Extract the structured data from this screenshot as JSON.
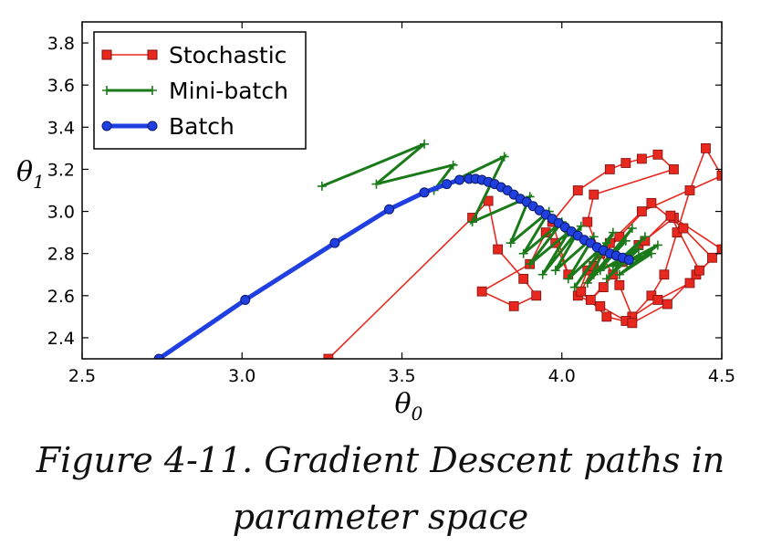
{
  "chart_data": {
    "type": "line",
    "xlabel": "θ",
    "xlabel_sub": "0",
    "ylabel": "θ",
    "ylabel_sub": "1",
    "xlim": [
      2.5,
      4.5
    ],
    "ylim": [
      2.3,
      3.9
    ],
    "xticks": [
      "2.5",
      "3.0",
      "3.5",
      "4.0",
      "4.5"
    ],
    "yticks": [
      "2.4",
      "2.6",
      "2.8",
      "3.0",
      "3.2",
      "3.4",
      "3.6",
      "3.8"
    ],
    "grid": false,
    "legend_position": "top-left",
    "series": [
      {
        "name": "Stochastic",
        "color": "#e8281e",
        "marker": "square",
        "x": [
          3.27,
          3.72,
          3.77,
          3.8,
          3.88,
          3.92,
          3.85,
          3.75,
          3.9,
          3.95,
          3.98,
          4.02,
          3.97,
          4.05,
          4.15,
          4.2,
          4.25,
          4.3,
          4.35,
          4.1,
          4.08,
          4.12,
          4.18,
          4.22,
          4.28,
          4.32,
          4.36,
          4.4,
          4.45,
          4.5,
          4.25,
          4.15,
          4.08,
          4.05,
          4.12,
          4.2,
          4.3,
          4.4,
          4.47,
          4.38,
          4.28,
          4.18,
          4.1,
          4.06,
          4.14,
          4.22,
          4.33,
          4.42,
          4.5,
          4.35,
          4.24,
          4.16,
          4.09,
          4.13,
          4.19,
          4.26,
          4.34,
          4.43
        ],
        "y": [
          2.3,
          2.97,
          3.05,
          2.82,
          2.68,
          2.6,
          2.55,
          2.62,
          2.75,
          2.9,
          2.85,
          2.7,
          2.95,
          3.1,
          3.2,
          3.23,
          3.25,
          3.27,
          3.2,
          3.08,
          2.95,
          2.8,
          2.65,
          2.5,
          2.6,
          2.7,
          2.9,
          3.1,
          3.3,
          3.17,
          3.0,
          2.85,
          2.72,
          2.6,
          2.55,
          2.48,
          2.58,
          2.66,
          2.78,
          2.92,
          3.04,
          2.88,
          2.74,
          2.62,
          2.5,
          2.47,
          2.56,
          2.7,
          2.82,
          2.97,
          2.84,
          2.7,
          2.58,
          2.64,
          2.76,
          2.86,
          2.98,
          2.72
        ]
      },
      {
        "name": "Mini-batch",
        "color": "#1a7a1a",
        "marker": "plus",
        "x": [
          3.25,
          3.57,
          3.42,
          3.66,
          3.6,
          3.82,
          3.72,
          3.9,
          3.84,
          3.96,
          3.88,
          4.0,
          3.9,
          4.02,
          3.94,
          4.06,
          3.98,
          4.1,
          4.02,
          4.14,
          4.04,
          4.16,
          4.08,
          4.2,
          4.1,
          4.22,
          4.12,
          4.24,
          4.14,
          4.26,
          4.16,
          4.28,
          4.18,
          4.3,
          4.2,
          4.22
        ],
        "y": [
          3.12,
          3.32,
          3.13,
          3.22,
          3.1,
          3.26,
          2.95,
          3.07,
          2.85,
          3.0,
          2.8,
          2.95,
          2.75,
          2.9,
          2.7,
          2.93,
          2.72,
          2.88,
          2.68,
          2.85,
          2.64,
          2.9,
          2.66,
          2.86,
          2.7,
          2.92,
          2.72,
          2.82,
          2.68,
          2.88,
          2.74,
          2.8,
          2.7,
          2.84,
          2.76,
          2.77
        ]
      },
      {
        "name": "Batch",
        "color": "#1f3fe0",
        "marker": "circle",
        "x": [
          2.74,
          3.01,
          3.29,
          3.46,
          3.57,
          3.64,
          3.68,
          3.71,
          3.73,
          3.75,
          3.77,
          3.79,
          3.81,
          3.83,
          3.85,
          3.87,
          3.89,
          3.91,
          3.93,
          3.95,
          3.97,
          3.99,
          4.01,
          4.03,
          4.05,
          4.07,
          4.09,
          4.11,
          4.13,
          4.15,
          4.17,
          4.19,
          4.21
        ],
        "y": [
          2.3,
          2.58,
          2.85,
          3.01,
          3.09,
          3.13,
          3.15,
          3.155,
          3.155,
          3.15,
          3.14,
          3.13,
          3.115,
          3.1,
          3.08,
          3.06,
          3.045,
          3.025,
          3.005,
          2.985,
          2.965,
          2.945,
          2.925,
          2.905,
          2.885,
          2.865,
          2.85,
          2.83,
          2.815,
          2.8,
          2.79,
          2.78,
          2.77
        ]
      }
    ]
  },
  "caption": {
    "line1": "Figure 4-11. Gradient Descent paths in",
    "line2": "parameter space"
  }
}
